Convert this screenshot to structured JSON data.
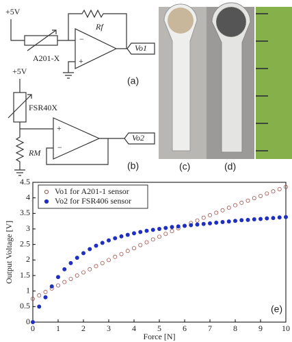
{
  "chart_data": {
    "type": "scatter",
    "xlabel": "Force [N]",
    "ylabel": "Output Voltage [V]",
    "panel": "(e)",
    "x": [
      0,
      0.25,
      0.5,
      0.75,
      1,
      1.25,
      1.5,
      1.75,
      2,
      2.25,
      2.5,
      2.75,
      3,
      3.25,
      3.5,
      3.75,
      4,
      4.25,
      4.5,
      4.75,
      5,
      5.25,
      5.5,
      5.75,
      6,
      6.25,
      6.5,
      6.75,
      7,
      7.25,
      7.5,
      7.75,
      8,
      8.25,
      8.5,
      8.75,
      9,
      9.25,
      9.5,
      9.75,
      10
    ],
    "series": [
      {
        "name": "Vo1 for A201-1 sensor",
        "color": "#a0524a",
        "marker": "open",
        "values": [
          0.75,
          0.86,
          0.97,
          1.08,
          1.18,
          1.29,
          1.39,
          1.5,
          1.6,
          1.7,
          1.8,
          1.9,
          2.0,
          2.1,
          2.19,
          2.29,
          2.38,
          2.48,
          2.57,
          2.66,
          2.75,
          2.84,
          2.93,
          3.02,
          3.1,
          3.19,
          3.27,
          3.36,
          3.44,
          3.52,
          3.6,
          3.68,
          3.76,
          3.84,
          3.91,
          3.99,
          4.06,
          4.14,
          4.21,
          4.28,
          4.35
        ]
      },
      {
        "name": "Vo2 for FSR406 sensor",
        "color": "#1f2fbf",
        "marker": "filled",
        "values": [
          0,
          0.5,
          0.8,
          1.15,
          1.45,
          1.7,
          1.9,
          2.07,
          2.22,
          2.35,
          2.46,
          2.55,
          2.63,
          2.7,
          2.76,
          2.81,
          2.86,
          2.9,
          2.94,
          2.97,
          3.0,
          3.03,
          3.06,
          3.08,
          3.1,
          3.12,
          3.14,
          3.16,
          3.18,
          3.2,
          3.22,
          3.24,
          3.26,
          3.28,
          3.29,
          3.31,
          3.32,
          3.34,
          3.35,
          3.37,
          3.38
        ]
      }
    ],
    "xlim": [
      0,
      10
    ],
    "xticks": [
      0,
      1,
      2,
      3,
      4,
      5,
      6,
      7,
      8,
      9,
      10
    ],
    "ylim": [
      0,
      4.5
    ],
    "yticks": [
      0,
      0.5,
      1,
      1.5,
      2,
      2.5,
      3,
      3.5,
      4,
      4.5
    ],
    "legend": "upper left"
  },
  "circuit_a": {
    "supply": "+5V",
    "feedback": "Rf",
    "sensor": "A201-X",
    "output": "Vo1",
    "panel": "(a)"
  },
  "circuit_b": {
    "supply": "+5V",
    "sensor": "FSR40X",
    "load": "RM",
    "output": "Vo2",
    "panel": "(b)"
  },
  "photos": {
    "c": "(c)",
    "d": "(d)"
  }
}
